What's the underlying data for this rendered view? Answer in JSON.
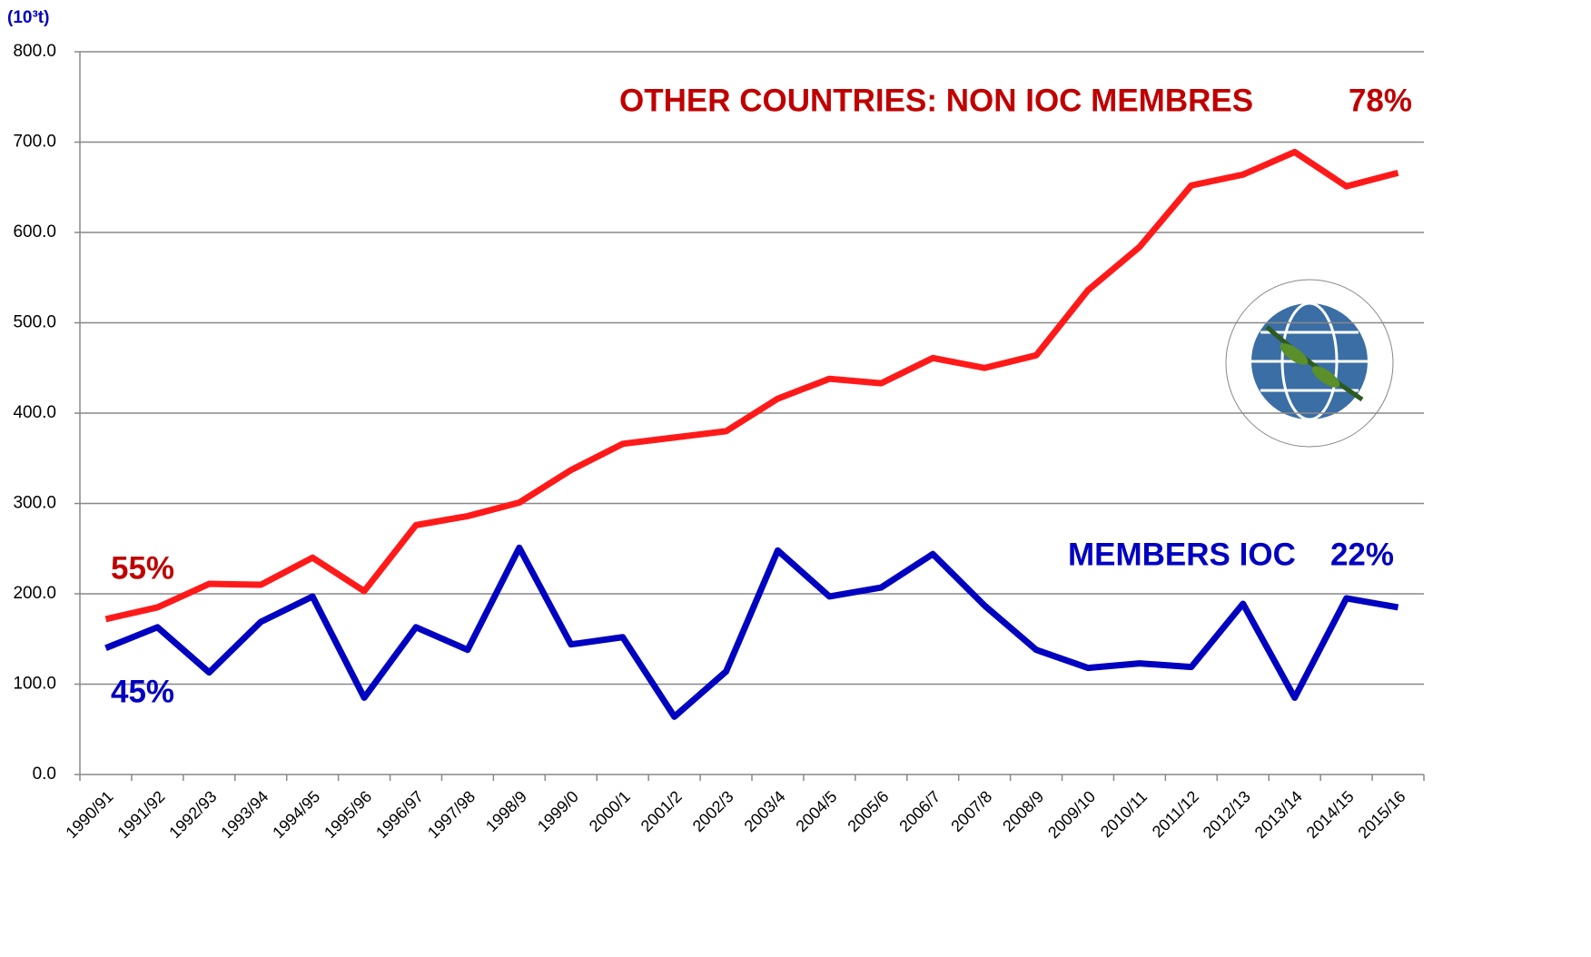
{
  "chart_data": {
    "type": "line",
    "y_unit": "(10³t)",
    "categories": [
      "1990/91",
      "1991/92",
      "1992/93",
      "1993/94",
      "1994/95",
      "1995/96",
      "1996/97",
      "1997/98",
      "1998/9",
      "1999/0",
      "2000/1",
      "2001/2",
      "2002/3",
      "2003/4",
      "2004/5",
      "2005/6",
      "2006/7",
      "2007/8",
      "2008/9",
      "2009/10",
      "2010/11",
      "2011/12",
      "2012/13",
      "2013/14",
      "2014/15",
      "2015/16"
    ],
    "series": [
      {
        "name": "OTHER COUNTRIES: NON IOC MEMBRES",
        "color": "#ff1a1a",
        "label_color": "#c00000",
        "values": [
          172,
          185,
          211,
          210,
          240,
          203,
          276,
          286,
          301,
          337,
          366,
          373,
          380,
          416,
          438,
          433,
          461,
          450,
          464,
          536,
          584,
          652,
          664,
          689,
          651,
          666
        ]
      },
      {
        "name": "MEMBERS IOC",
        "color": "#0000c0",
        "label_color": "#0000c0",
        "values": [
          140,
          163,
          113,
          169,
          197,
          85,
          163,
          138,
          251,
          144,
          152,
          64,
          114,
          248,
          197,
          207,
          244,
          187,
          138,
          118,
          123,
          119,
          189,
          85,
          195,
          185
        ]
      }
    ],
    "annotations": {
      "other_share_end": "78%",
      "other_share_start": "55%",
      "members_share_end": "22%",
      "members_share_start": "45%"
    },
    "ylim": [
      0,
      800
    ],
    "yticks": [
      {
        "value": 0,
        "label": "0.0"
      },
      {
        "value": 100,
        "label": "100.0"
      },
      {
        "value": 200,
        "label": "200.0"
      },
      {
        "value": 300,
        "label": "300.0"
      },
      {
        "value": 400,
        "label": "400.0"
      },
      {
        "value": 500,
        "label": "500.0"
      },
      {
        "value": 600,
        "label": "600.0"
      },
      {
        "value": 700,
        "label": "700.0"
      },
      {
        "value": 800,
        "label": "800.0"
      }
    ],
    "grid": true
  }
}
